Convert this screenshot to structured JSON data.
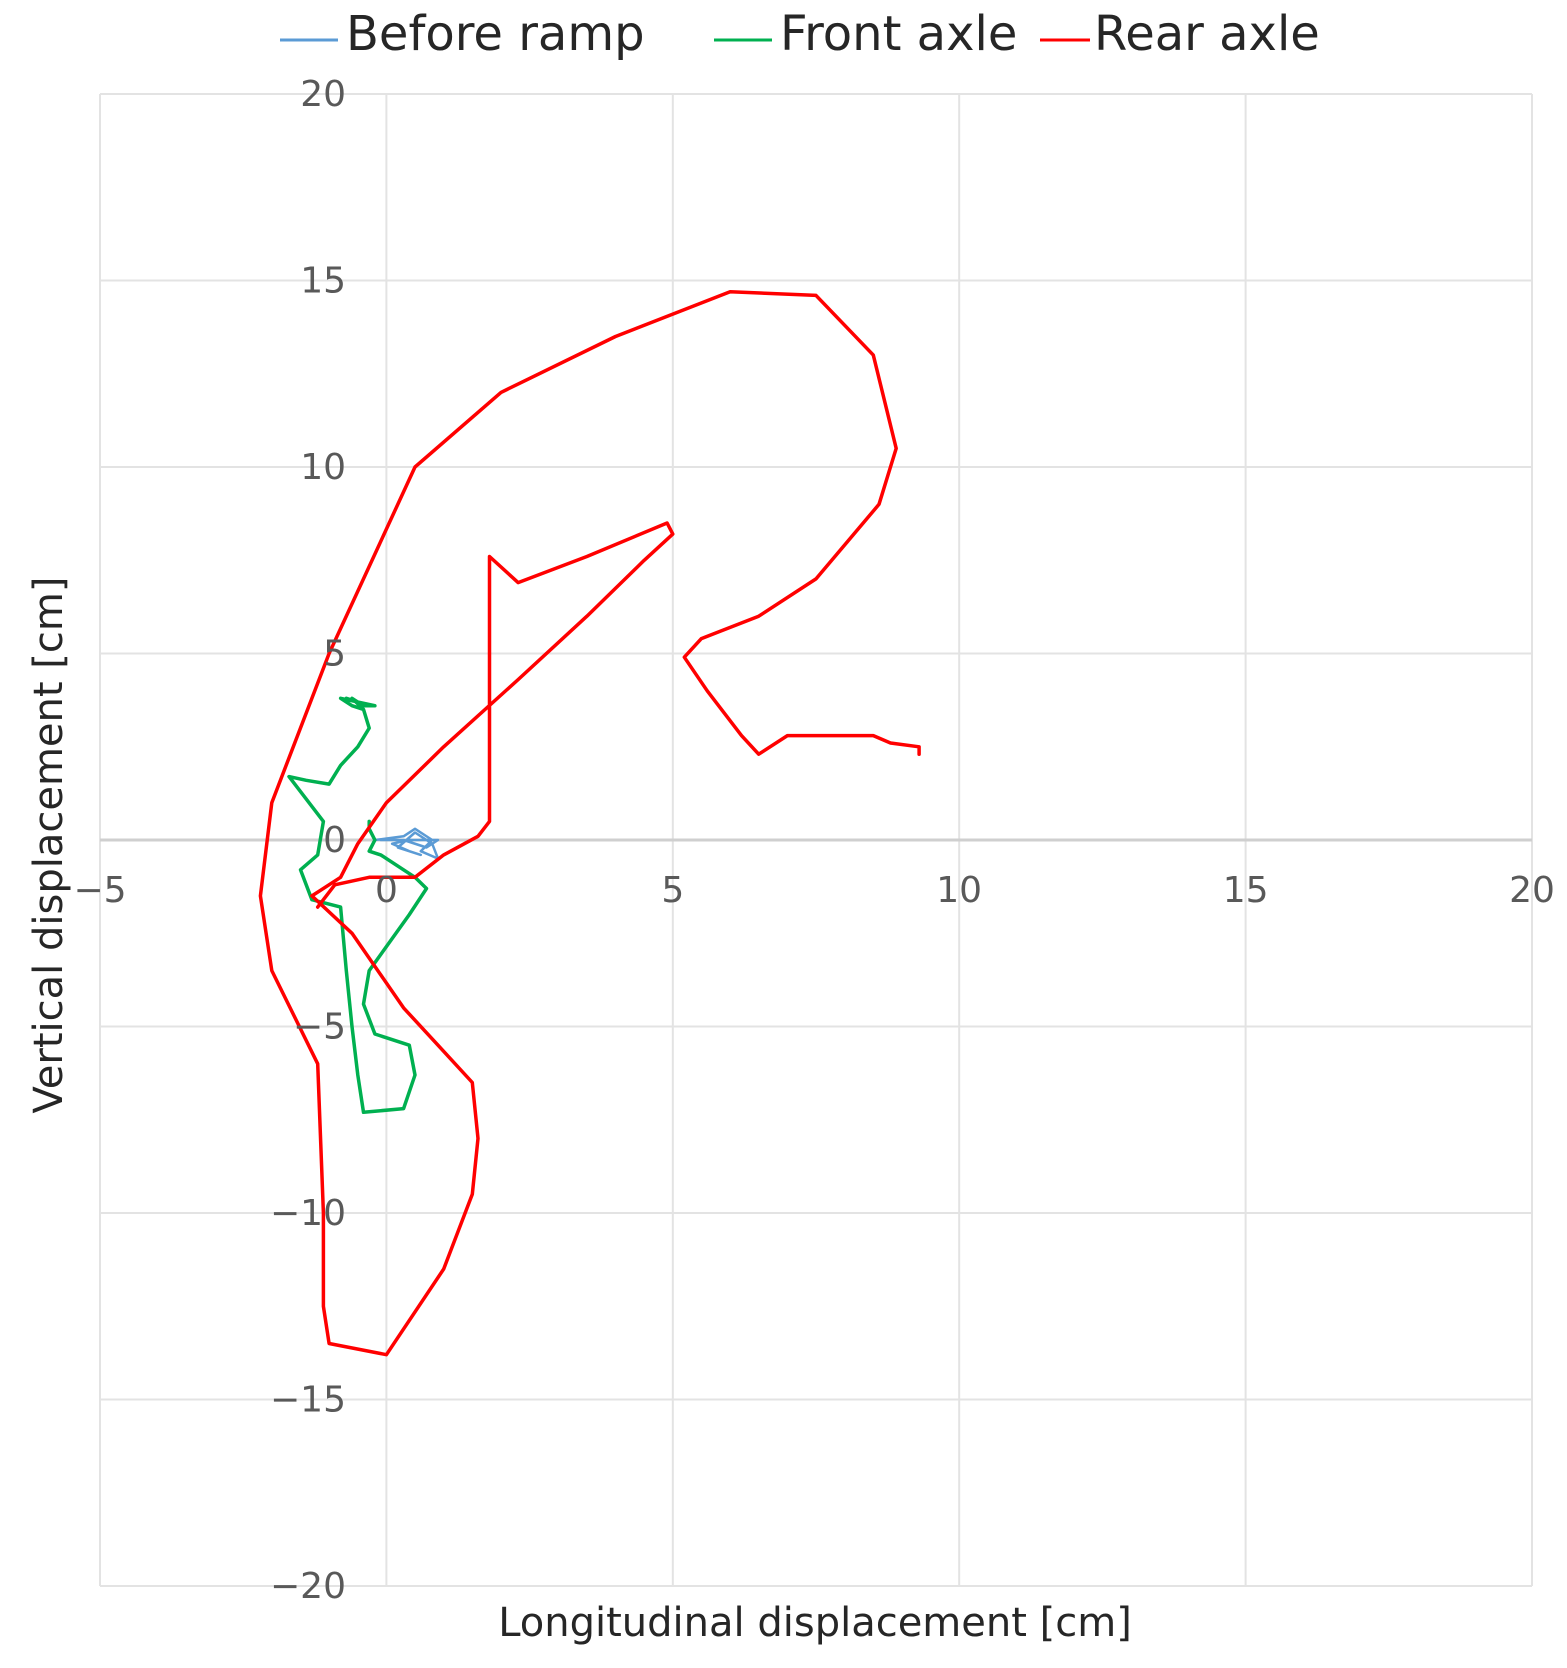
{
  "chart_data": {
    "type": "line",
    "title": "",
    "xlabel": "Longitudinal displacement [cm]",
    "ylabel": "Vertical displacement [cm]",
    "xlim": [
      -5,
      20
    ],
    "ylim": [
      -20,
      20
    ],
    "x_ticks": [
      -5,
      0,
      5,
      10,
      15,
      20
    ],
    "y_ticks": [
      20,
      15,
      10,
      5,
      0,
      -5,
      -10,
      -15,
      -20
    ],
    "grid": true,
    "legend_position": "top",
    "series": [
      {
        "name": "Before ramp",
        "color": "#5b9bd5",
        "x": [
          -0.2,
          0.3,
          0.5,
          0.8,
          0.6,
          0.9,
          0.8,
          0.5,
          0.2,
          0.6,
          0.4,
          0.1,
          0.4,
          0.9,
          0.7,
          0.3,
          -0.1
        ],
        "y": [
          0.0,
          0.1,
          0.3,
          0.0,
          -0.3,
          -0.5,
          -0.1,
          0.2,
          -0.2,
          -0.4,
          -0.3,
          -0.1,
          0.0,
          0.0,
          -0.2,
          0.0,
          0.0
        ]
      },
      {
        "name": "Front axle",
        "color": "#00b050",
        "x": [
          -0.3,
          -0.3,
          -0.2,
          -0.3,
          -0.1,
          0.5,
          0.7,
          0.4,
          -0.3,
          -0.4,
          -0.2,
          0.4,
          0.5,
          0.3,
          -0.4,
          -0.5,
          -0.6,
          -0.7,
          -0.8,
          -1.3,
          -1.4,
          -1.5,
          -1.2,
          -1.1,
          -1.7,
          -1.4,
          -1.0,
          -0.8,
          -0.5,
          -0.3,
          -0.4,
          -0.6,
          -0.4,
          -0.2,
          -0.8,
          -0.6,
          -0.4,
          -0.5,
          -0.7
        ],
        "y": [
          0.5,
          0.3,
          0.0,
          -0.3,
          -0.4,
          -1.0,
          -1.3,
          -2.0,
          -3.5,
          -4.4,
          -5.2,
          -5.5,
          -6.3,
          -7.2,
          -7.3,
          -6.3,
          -5.0,
          -3.5,
          -1.8,
          -1.6,
          -1.2,
          -0.8,
          -0.4,
          0.5,
          1.7,
          1.6,
          1.5,
          2.0,
          2.5,
          3.0,
          3.5,
          3.8,
          3.6,
          3.6,
          3.8,
          3.6,
          3.5,
          3.7,
          3.8
        ]
      },
      {
        "name": "Rear axle",
        "color": "#ff0000",
        "x": [
          -1.2,
          -0.9,
          -0.3,
          0.5,
          1.0,
          1.6,
          1.8,
          1.8,
          1.8,
          1.8,
          2.3,
          3.5,
          4.9,
          5.0,
          4.5,
          3.5,
          2.3,
          1.0,
          0.0,
          -0.5,
          -0.8,
          -1.3,
          -0.6,
          0.3,
          0.9,
          1.5,
          1.6,
          1.5,
          1.0,
          0.0,
          -1.0,
          -1.1,
          -1.1,
          -1.2,
          -2.0,
          -2.2,
          -2.0,
          -1.0,
          0.5,
          2.0,
          4.0,
          6.0,
          7.5,
          8.5,
          8.9,
          8.6,
          7.5,
          6.5,
          5.5,
          5.2,
          5.6,
          6.2,
          6.5,
          7.0,
          8.5,
          8.8,
          9.3,
          9.3
        ],
        "y": [
          -1.8,
          -1.2,
          -1.0,
          -1.0,
          -0.4,
          0.1,
          0.5,
          3.0,
          5.5,
          7.6,
          6.9,
          7.6,
          8.5,
          8.2,
          7.5,
          6.0,
          4.3,
          2.5,
          1.0,
          -0.1,
          -1.0,
          -1.5,
          -2.5,
          -4.5,
          -5.5,
          -6.5,
          -8.0,
          -9.5,
          -11.5,
          -13.8,
          -13.5,
          -12.5,
          -10.0,
          -6.0,
          -3.5,
          -1.5,
          1.0,
          5.0,
          10.0,
          12.0,
          13.5,
          14.7,
          14.6,
          13.0,
          10.5,
          9.0,
          7.0,
          6.0,
          5.4,
          4.9,
          4.0,
          2.8,
          2.3,
          2.8,
          2.8,
          2.6,
          2.5,
          2.3
        ]
      }
    ]
  }
}
